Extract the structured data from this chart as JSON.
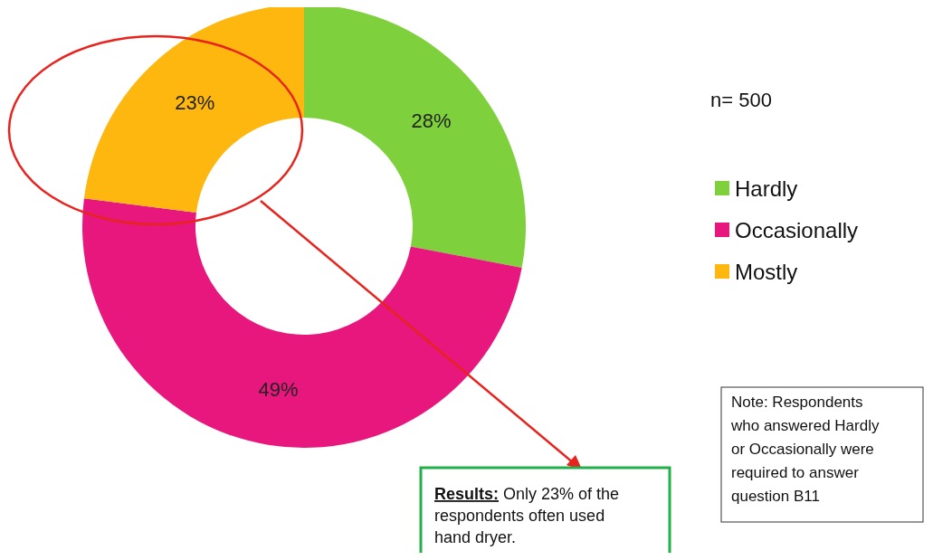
{
  "chart_data": {
    "type": "donut",
    "categories": [
      "Hardly",
      "Occasionally",
      "Mostly"
    ],
    "values": [
      28,
      49,
      23
    ],
    "colors": [
      "#7ed13c",
      "#e8177d",
      "#fdb70f"
    ],
    "value_labels": [
      "28%",
      "49%",
      "23%"
    ],
    "legend": "right",
    "annotations": [
      "n= 500",
      "Results: Only 23% of the respondents often used hand dryer.",
      "Note: Respondents who answered Hardly or Occasionally were required to answer question B11"
    ]
  }
}
